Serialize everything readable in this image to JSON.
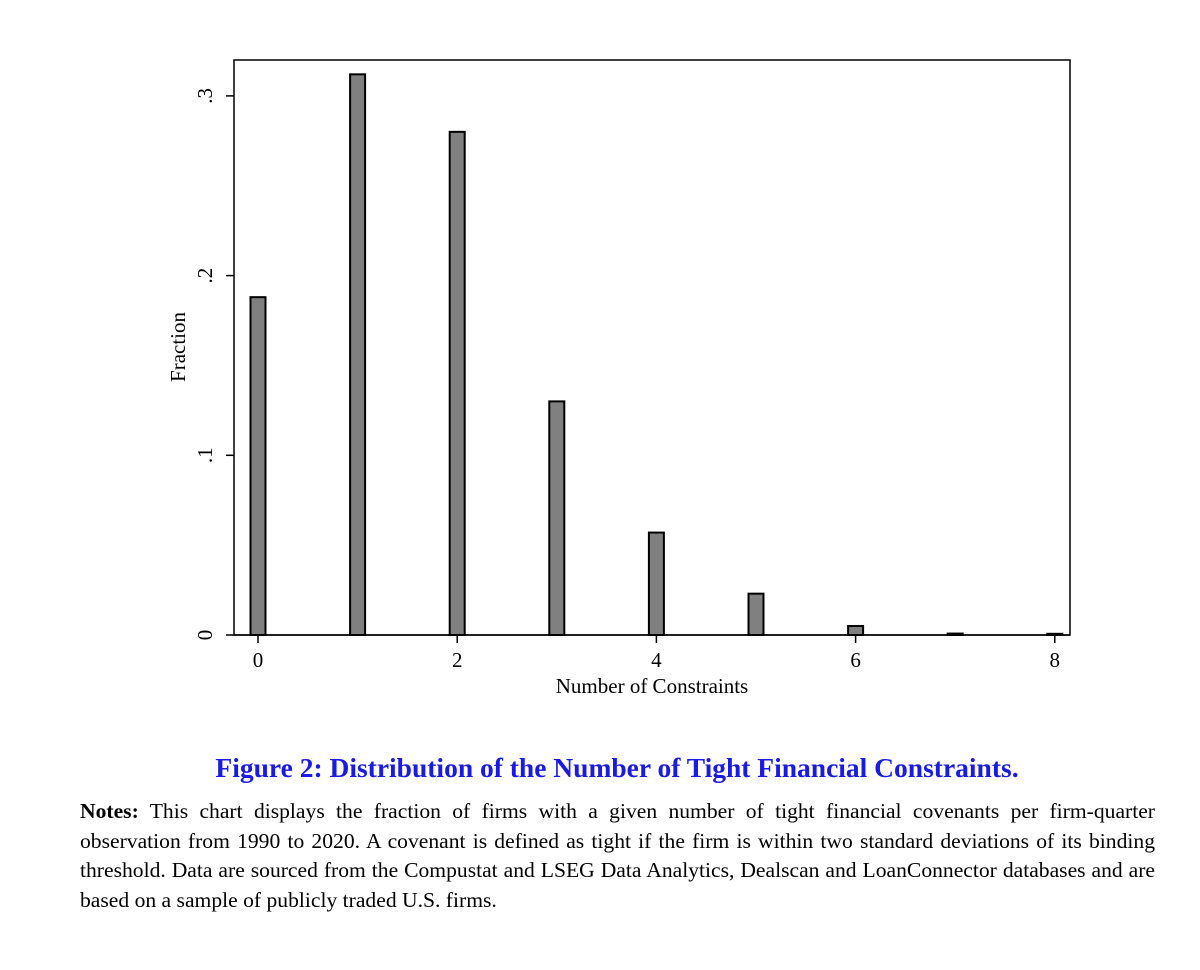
{
  "chart_data": {
    "type": "bar",
    "x": [
      0,
      1,
      2,
      3,
      4,
      5,
      6,
      7,
      8
    ],
    "values": [
      0.188,
      0.312,
      0.28,
      0.13,
      0.057,
      0.023,
      0.005,
      0.0008,
      0.0005
    ],
    "xlabel": "Number of Constraints",
    "ylabel": "Fraction",
    "xticks": [
      0,
      2,
      4,
      6,
      8
    ],
    "xtick_labels": [
      "0",
      "2",
      "4",
      "6",
      "8"
    ],
    "yticks": [
      0,
      0.1,
      0.2,
      0.3
    ],
    "ytick_labels": [
      "0",
      ".1",
      ".2",
      ".3"
    ],
    "xlim": [
      -0.2,
      8.2
    ],
    "ylim": [
      0,
      0.32
    ],
    "bar_color": "#808080",
    "grid": false
  },
  "caption": {
    "title": "Figure 2: Distribution of the Number of Tight Financial Constraints.",
    "notes_label": "Notes:",
    "notes_text": "This chart displays the fraction of firms with a given number of tight financial covenants per firm-quarter observation from 1990 to 2020. A covenant is defined as tight if the firm is within two standard deviations of its binding threshold. Data are sourced from the Compustat and LSEG Data Analytics, Dealscan and LoanConnector databases and are based on a sample of publicly traded U.S. firms."
  }
}
